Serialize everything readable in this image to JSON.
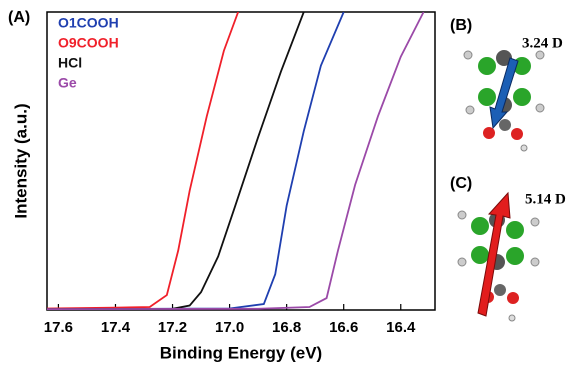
{
  "panel_label": "(A)",
  "chart_data": {
    "type": "line",
    "x_label": "Binding Energy (eV)",
    "y_label": "Intensity (a.u.)",
    "xlim": [
      17.64,
      16.28
    ],
    "ylim": [
      0,
      1
    ],
    "xticks": [
      17.6,
      17.4,
      17.2,
      {
        "value": 17,
        "label": "17.0"
      },
      16.8,
      16.6,
      16.4
    ],
    "legend": "top-left",
    "series": [
      {
        "name": "O1COOH",
        "color": "#1f3fb0",
        "x": [
          17.64,
          17.0,
          16.88,
          16.84,
          16.8,
          16.74,
          16.68,
          16.6
        ],
        "values": [
          0.003,
          0.005,
          0.02,
          0.12,
          0.35,
          0.6,
          0.82,
          1.0
        ]
      },
      {
        "name": "O9COOH",
        "color": "#f0202a",
        "x": [
          17.64,
          17.4,
          17.28,
          17.22,
          17.18,
          17.14,
          17.08,
          17.02,
          16.97
        ],
        "values": [
          0.005,
          0.008,
          0.01,
          0.05,
          0.2,
          0.4,
          0.65,
          0.87,
          1.0
        ]
      },
      {
        "name": "HCl",
        "color": "#111111",
        "x": [
          17.64,
          17.2,
          17.14,
          17.1,
          17.04,
          16.98,
          16.9,
          16.82,
          16.74
        ],
        "values": [
          0.003,
          0.004,
          0.015,
          0.06,
          0.18,
          0.35,
          0.58,
          0.8,
          1.0
        ]
      },
      {
        "name": "Ge",
        "color": "#9b4aa8",
        "x": [
          17.64,
          16.9,
          16.72,
          16.66,
          16.62,
          16.56,
          16.48,
          16.4,
          16.32
        ],
        "values": [
          0.003,
          0.004,
          0.01,
          0.04,
          0.2,
          0.42,
          0.65,
          0.85,
          1.0
        ]
      }
    ]
  },
  "molecules": [
    {
      "label": "(B)",
      "dipole": "3.24 D"
    },
    {
      "label": "(C)",
      "dipole": "5.14 D"
    }
  ]
}
